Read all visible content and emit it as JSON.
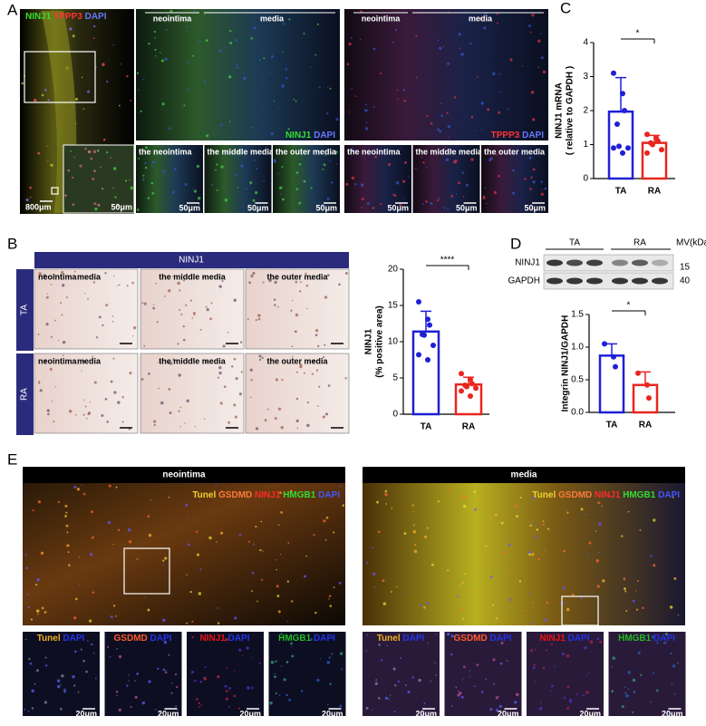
{
  "panel_labels": [
    "A",
    "B",
    "C",
    "D",
    "E"
  ],
  "panel_a": {
    "merge_legend": [
      {
        "text": "NINJ1",
        "color": "#33dd33"
      },
      {
        "text": "TPPP3",
        "color": "#ff3333"
      },
      {
        "text": "DAPI",
        "color": "#6677ff"
      }
    ],
    "scale_large": "800μm",
    "scale_inset": "50μm",
    "region_labels": [
      "neointima",
      "media"
    ],
    "green_legend": [
      {
        "text": "NINJ1",
        "color": "#33dd33"
      },
      {
        "text": "DAPI",
        "color": "#6677ff"
      }
    ],
    "red_legend": [
      {
        "text": "TPPP3",
        "color": "#ff3333"
      },
      {
        "text": "DAPI",
        "color": "#6677ff"
      }
    ],
    "sub_labels": [
      "the neointima",
      "the middle media",
      "the outer media"
    ],
    "scale_small": "50μm"
  },
  "panel_b": {
    "header": "NINJ1",
    "rows": [
      "TA",
      "RA"
    ],
    "ta_labels": [
      "neointima",
      "media",
      "the middle media",
      "the outer media"
    ],
    "ra_labels": [
      "neointima",
      "media",
      "the middle media",
      "the outer media"
    ]
  },
  "panel_d": {
    "groups": [
      "TA",
      "RA"
    ],
    "mw_header": "MV(kDa)",
    "bands": [
      "NINJ1",
      "GAPDH"
    ],
    "markers": [
      "15",
      "40"
    ]
  },
  "panel_e": {
    "titles": [
      "neointima",
      "media"
    ],
    "legend": [
      {
        "text": "Tunel",
        "color": "#f2d22e"
      },
      {
        "text": "GSDMD",
        "color": "#ff7a3a"
      },
      {
        "text": "NINJ1",
        "color": "#ff2a2a"
      },
      {
        "text": "HMGB1",
        "color": "#33dd33"
      },
      {
        "text": "DAPI",
        "color": "#4455ff"
      }
    ],
    "small_labels": [
      [
        {
          "text": "Tunel",
          "color": "#f2b21e"
        },
        {
          "text": "DAPI",
          "color": "#2233ee"
        }
      ],
      [
        {
          "text": "GSDMD",
          "color": "#ff5a2a"
        },
        {
          "text": "DAPI",
          "color": "#2233ee"
        }
      ],
      [
        {
          "text": "NINJ1",
          "color": "#ee1111"
        },
        {
          "text": "DAPI",
          "color": "#2233ee"
        }
      ],
      [
        {
          "text": "HMGB1",
          "color": "#22bb22"
        },
        {
          "text": "DAPI",
          "color": "#2233ee"
        }
      ]
    ],
    "scale": "20μm"
  },
  "chart_data": [
    {
      "type": "bar",
      "ylabel": [
        "NINJ1 mRNA",
        "( relative to GAPDH )"
      ],
      "categories": [
        "TA",
        "RA"
      ],
      "values": [
        1.97,
        1.05
      ],
      "errors": [
        1.0,
        0.22
      ],
      "colors": [
        "#1f1fd6",
        "#e8261f"
      ],
      "points": [
        [
          3.1,
          2.5,
          2.0,
          1.6,
          0.95,
          0.9,
          0.9,
          0.75
        ],
        [
          1.3,
          1.2,
          1.1,
          1.05,
          1.0,
          0.85,
          0.75
        ]
      ],
      "ylim": [
        0,
        4
      ],
      "yticks": [
        0,
        1,
        2,
        3,
        4
      ],
      "significance": "*"
    },
    {
      "type": "bar",
      "ylabel": [
        "NINJ1",
        "(% positive area)"
      ],
      "categories": [
        "TA",
        "RA"
      ],
      "values": [
        11.4,
        4.1
      ],
      "errors": [
        2.8,
        1.0
      ],
      "colors": [
        "#1f1fd6",
        "#e8261f"
      ],
      "points": [
        [
          15.5,
          13.1,
          12.3,
          11.0,
          10.9,
          9.5,
          8.2,
          7.5
        ],
        [
          5.6,
          4.8,
          4.2,
          4.0,
          3.8,
          3.6,
          3.2,
          2.5
        ]
      ],
      "ylim": [
        0,
        20
      ],
      "yticks": [
        0,
        5,
        10,
        15,
        20
      ],
      "significance": "****"
    },
    {
      "type": "bar",
      "ylabel": [
        "Integrin NINJ1/GAPDH"
      ],
      "categories": [
        "TA",
        "RA"
      ],
      "values": [
        0.87,
        0.42
      ],
      "errors": [
        0.18,
        0.2
      ],
      "colors": [
        "#1f1fd6",
        "#e8261f"
      ],
      "points": [
        [
          1.05,
          0.85,
          0.7
        ],
        [
          0.6,
          0.42,
          0.22
        ]
      ],
      "ylim": [
        0,
        1.5
      ],
      "yticks": [
        {
          "value": 0,
          "label": "0.0"
        },
        0.5,
        {
          "value": 1,
          "label": "1.0"
        },
        1.5
      ],
      "significance": "*"
    }
  ]
}
